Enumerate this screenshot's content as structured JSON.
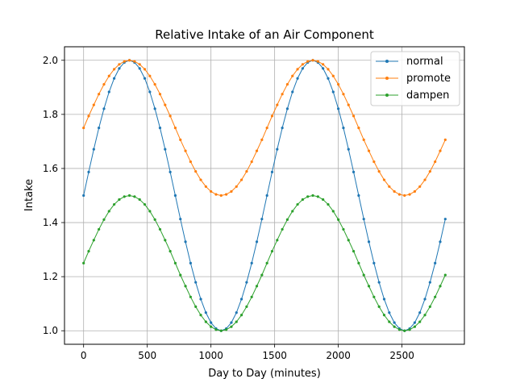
{
  "chart_data": {
    "type": "line",
    "title": "Relative Intake of an Air Component",
    "xlabel": "Day to Day (minutes)",
    "ylabel": "Intake",
    "xlim": [
      -150,
      2990
    ],
    "ylim": [
      0.95,
      2.05
    ],
    "xticks": [
      0,
      500,
      1000,
      1500,
      2000,
      2500
    ],
    "yticks": [
      1.0,
      1.2,
      1.4,
      1.6,
      1.8,
      2.0
    ],
    "xtick_labels": [
      "0",
      "500",
      "1000",
      "1500",
      "2000",
      "2500"
    ],
    "ytick_labels": [
      "1.0",
      "1.2",
      "1.4",
      "1.6",
      "1.8",
      "2.0"
    ],
    "grid": true,
    "legend_position": "upper-right",
    "x": [
      0,
      40,
      80,
      120,
      160,
      200,
      240,
      280,
      320,
      360,
      400,
      440,
      480,
      520,
      560,
      600,
      640,
      680,
      720,
      760,
      800,
      840,
      880,
      920,
      960,
      1000,
      1040,
      1080,
      1120,
      1160,
      1200,
      1240,
      1280,
      1320,
      1360,
      1400,
      1440,
      1480,
      1520,
      1560,
      1600,
      1640,
      1680,
      1720,
      1760,
      1800,
      1840,
      1880,
      1920,
      1960,
      2000,
      2040,
      2080,
      2120,
      2160,
      2200,
      2240,
      2280,
      2320,
      2360,
      2400,
      2440,
      2480,
      2520,
      2560,
      2600,
      2640,
      2680,
      2720,
      2760,
      2800,
      2840
    ],
    "series": [
      {
        "name": "normal",
        "color": "#1f77b4",
        "values": [
          1.5,
          1.587,
          1.671,
          1.75,
          1.821,
          1.883,
          1.933,
          1.97,
          1.992,
          2.0,
          1.992,
          1.97,
          1.933,
          1.883,
          1.821,
          1.75,
          1.671,
          1.587,
          1.5,
          1.413,
          1.329,
          1.25,
          1.179,
          1.117,
          1.067,
          1.03,
          1.008,
          1.0,
          1.008,
          1.03,
          1.067,
          1.117,
          1.179,
          1.25,
          1.329,
          1.413,
          1.5,
          1.587,
          1.671,
          1.75,
          1.821,
          1.883,
          1.933,
          1.97,
          1.992,
          2.0,
          1.992,
          1.97,
          1.933,
          1.883,
          1.821,
          1.75,
          1.671,
          1.587,
          1.5,
          1.413,
          1.329,
          1.25,
          1.179,
          1.117,
          1.067,
          1.03,
          1.008,
          1.0,
          1.008,
          1.03,
          1.067,
          1.117,
          1.179,
          1.25,
          1.329,
          1.413
        ]
      },
      {
        "name": "promote",
        "color": "#ff7f0e",
        "values": [
          1.75,
          1.794,
          1.835,
          1.875,
          1.911,
          1.942,
          1.967,
          1.985,
          1.996,
          2.0,
          1.996,
          1.985,
          1.967,
          1.942,
          1.911,
          1.875,
          1.835,
          1.794,
          1.75,
          1.706,
          1.665,
          1.625,
          1.589,
          1.558,
          1.533,
          1.515,
          1.504,
          1.5,
          1.504,
          1.515,
          1.533,
          1.558,
          1.589,
          1.625,
          1.665,
          1.706,
          1.75,
          1.794,
          1.835,
          1.875,
          1.911,
          1.942,
          1.967,
          1.985,
          1.996,
          2.0,
          1.996,
          1.985,
          1.967,
          1.942,
          1.911,
          1.875,
          1.835,
          1.794,
          1.75,
          1.706,
          1.665,
          1.625,
          1.589,
          1.558,
          1.533,
          1.515,
          1.504,
          1.5,
          1.504,
          1.515,
          1.533,
          1.558,
          1.589,
          1.625,
          1.665,
          1.706
        ]
      },
      {
        "name": "dampen",
        "color": "#2ca02c",
        "values": [
          1.25,
          1.294,
          1.335,
          1.375,
          1.411,
          1.442,
          1.467,
          1.485,
          1.496,
          1.5,
          1.496,
          1.485,
          1.467,
          1.442,
          1.411,
          1.375,
          1.335,
          1.294,
          1.25,
          1.206,
          1.165,
          1.125,
          1.089,
          1.058,
          1.033,
          1.015,
          1.004,
          1.0,
          1.004,
          1.015,
          1.033,
          1.058,
          1.089,
          1.125,
          1.165,
          1.206,
          1.25,
          1.294,
          1.335,
          1.375,
          1.411,
          1.442,
          1.467,
          1.485,
          1.496,
          1.5,
          1.496,
          1.485,
          1.467,
          1.442,
          1.411,
          1.375,
          1.335,
          1.294,
          1.25,
          1.206,
          1.165,
          1.125,
          1.089,
          1.058,
          1.033,
          1.015,
          1.004,
          1.0,
          1.004,
          1.015,
          1.033,
          1.058,
          1.089,
          1.125,
          1.165,
          1.206
        ]
      }
    ]
  }
}
